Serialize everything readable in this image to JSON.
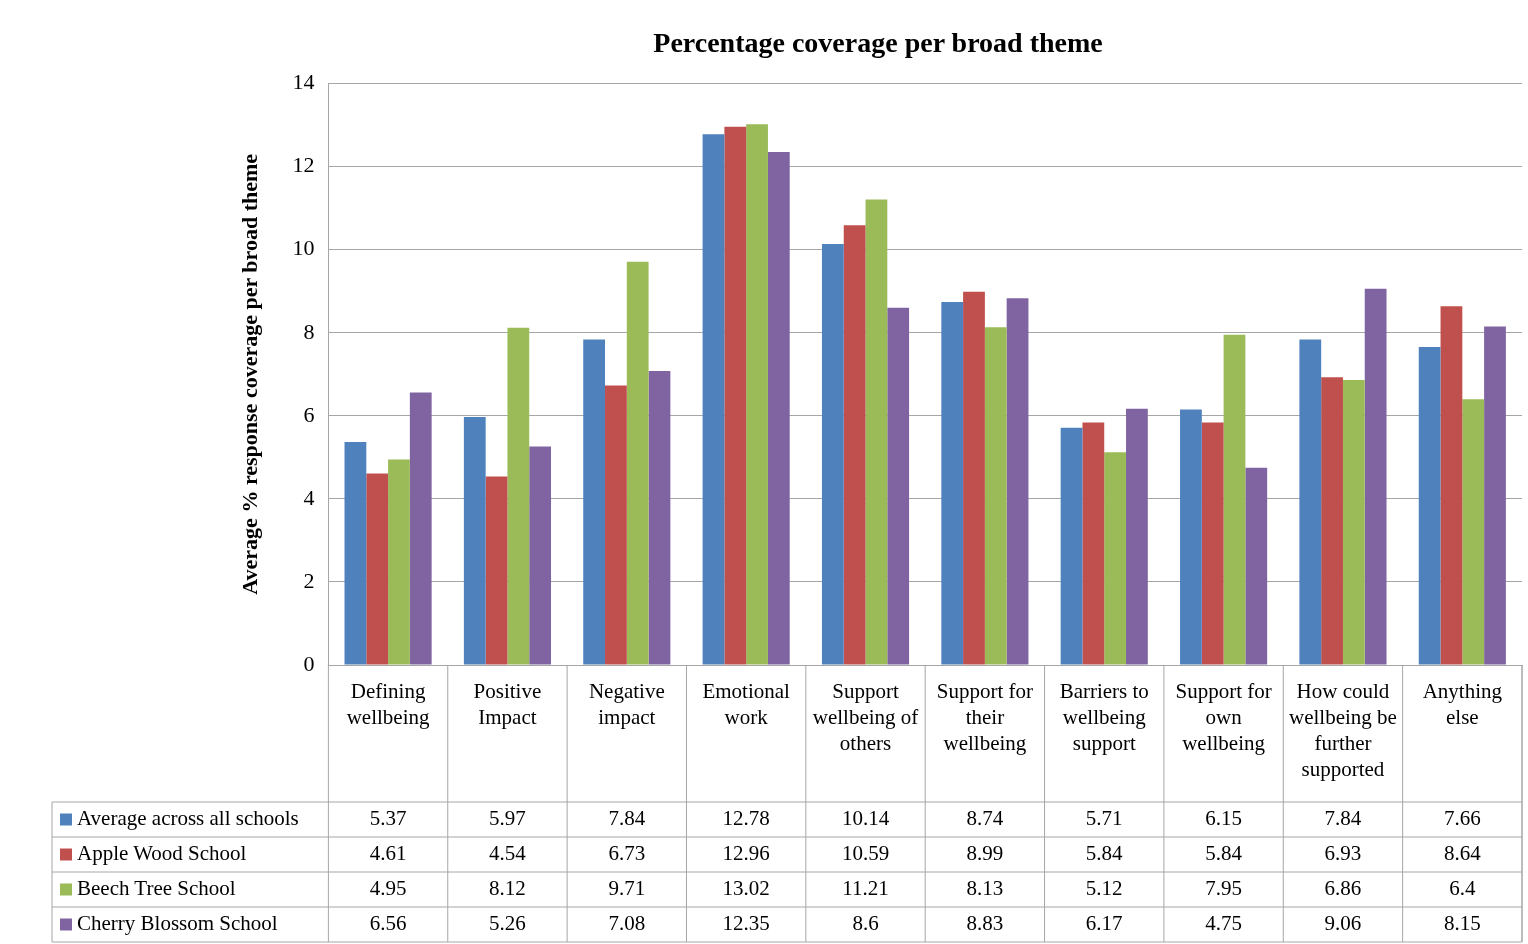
{
  "chart_data": {
    "type": "bar",
    "title": "Percentage coverage per broad theme",
    "ylabel": "Average % response coverage per broad theme",
    "categories": [
      "Defining wellbeing",
      "Positive Impact",
      "Negative impact",
      "Emotional work",
      "Support wellbeing of others",
      "Support for their wellbeing",
      "Barriers to wellbeing support",
      "Support for own wellbeing",
      "How could wellbeing be further supported",
      "Anything else"
    ],
    "series": [
      {
        "name": "Average across all schools",
        "color": "#4f81bd",
        "values": [
          5.37,
          5.97,
          7.84,
          12.78,
          10.14,
          8.74,
          5.71,
          6.15,
          7.84,
          7.66
        ]
      },
      {
        "name": "Apple Wood School",
        "color": "#c0504d",
        "values": [
          4.61,
          4.54,
          6.73,
          12.96,
          10.59,
          8.99,
          5.84,
          5.84,
          6.93,
          8.64
        ]
      },
      {
        "name": "Beech Tree School",
        "color": "#9bbb59",
        "values": [
          4.95,
          8.12,
          9.71,
          13.02,
          11.21,
          8.13,
          5.12,
          7.95,
          6.86,
          6.4
        ]
      },
      {
        "name": "Cherry Blossom School",
        "color": "#8064a2",
        "values": [
          6.56,
          5.26,
          7.08,
          12.35,
          8.6,
          8.83,
          6.17,
          4.75,
          9.06,
          8.15
        ]
      }
    ],
    "ylim": [
      0,
      14
    ],
    "yticks": [
      0,
      2,
      4,
      6,
      8,
      10,
      12,
      14
    ],
    "grid": "y",
    "legend": "bottom",
    "data_labels": true
  }
}
